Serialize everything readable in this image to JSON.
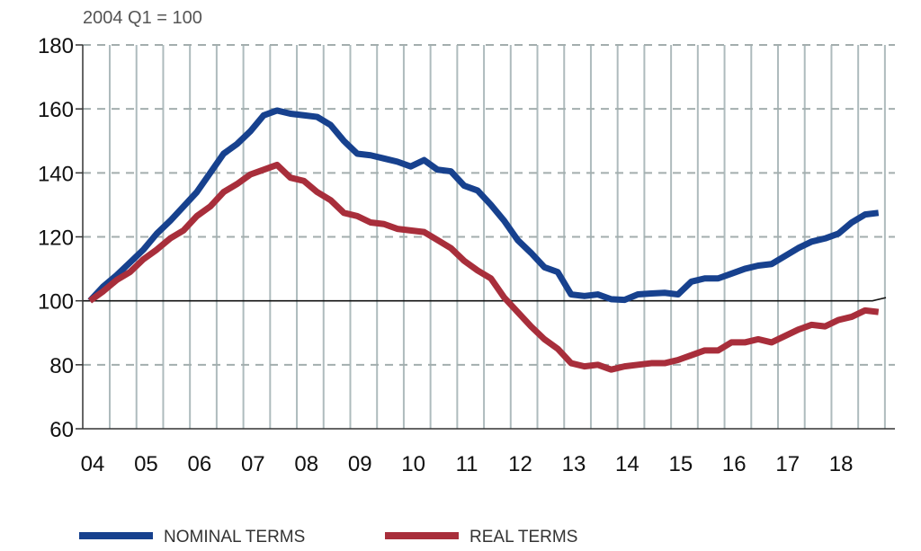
{
  "chart_data": {
    "type": "line",
    "subtitle": "2004 Q1 = 100",
    "ylim": [
      60,
      180
    ],
    "yticks": [
      60,
      80,
      100,
      120,
      140,
      160,
      180
    ],
    "xtick_labels": [
      "04",
      "05",
      "06",
      "07",
      "08",
      "09",
      "10",
      "11",
      "12",
      "13",
      "14",
      "15",
      "16",
      "17",
      "18"
    ],
    "x_frequency": "quarterly, 2004 Q1 to 2018 Q4",
    "reference_line": 100,
    "grid": "horizontal dashed and vertical half-year lines",
    "legend_position": "bottom",
    "series": [
      {
        "name": "NOMINAL TERMS",
        "color": "#17418e",
        "values": [
          100,
          104.5,
          108,
          112,
          116,
          121,
          125,
          129.5,
          134,
          140,
          146,
          149,
          153,
          158,
          159.5,
          158.5,
          158,
          157.5,
          155,
          150,
          146,
          145.5,
          144.5,
          143.5,
          142,
          144,
          141,
          140.5,
          136,
          134.5,
          130,
          125,
          119,
          115,
          110.5,
          109,
          102,
          101.5,
          102,
          100.5,
          100.3,
          102,
          102.3,
          102.5,
          102,
          106,
          107,
          107,
          108.5,
          110,
          111,
          111.5,
          114,
          116.5,
          118.5,
          119.5,
          121,
          124.5,
          127,
          127.5
        ]
      },
      {
        "name": "REAL TERMS",
        "color": "#a82e3b",
        "values": [
          100,
          103,
          106.5,
          109,
          113,
          116,
          119.5,
          122,
          126.5,
          129.5,
          134,
          136.5,
          139.5,
          141,
          142.5,
          138.5,
          137.5,
          134,
          131.5,
          127.5,
          126.5,
          124.5,
          124,
          122.5,
          122,
          121.5,
          119,
          116.5,
          112.5,
          109.5,
          107,
          101,
          96.5,
          92,
          88,
          85,
          80.5,
          79.5,
          80,
          78.5,
          79.5,
          80,
          80.5,
          80.5,
          81.5,
          83,
          84.5,
          84.5,
          87,
          87,
          88,
          87,
          89,
          91,
          92.5,
          92,
          94,
          95,
          97,
          96.5
        ]
      }
    ]
  }
}
